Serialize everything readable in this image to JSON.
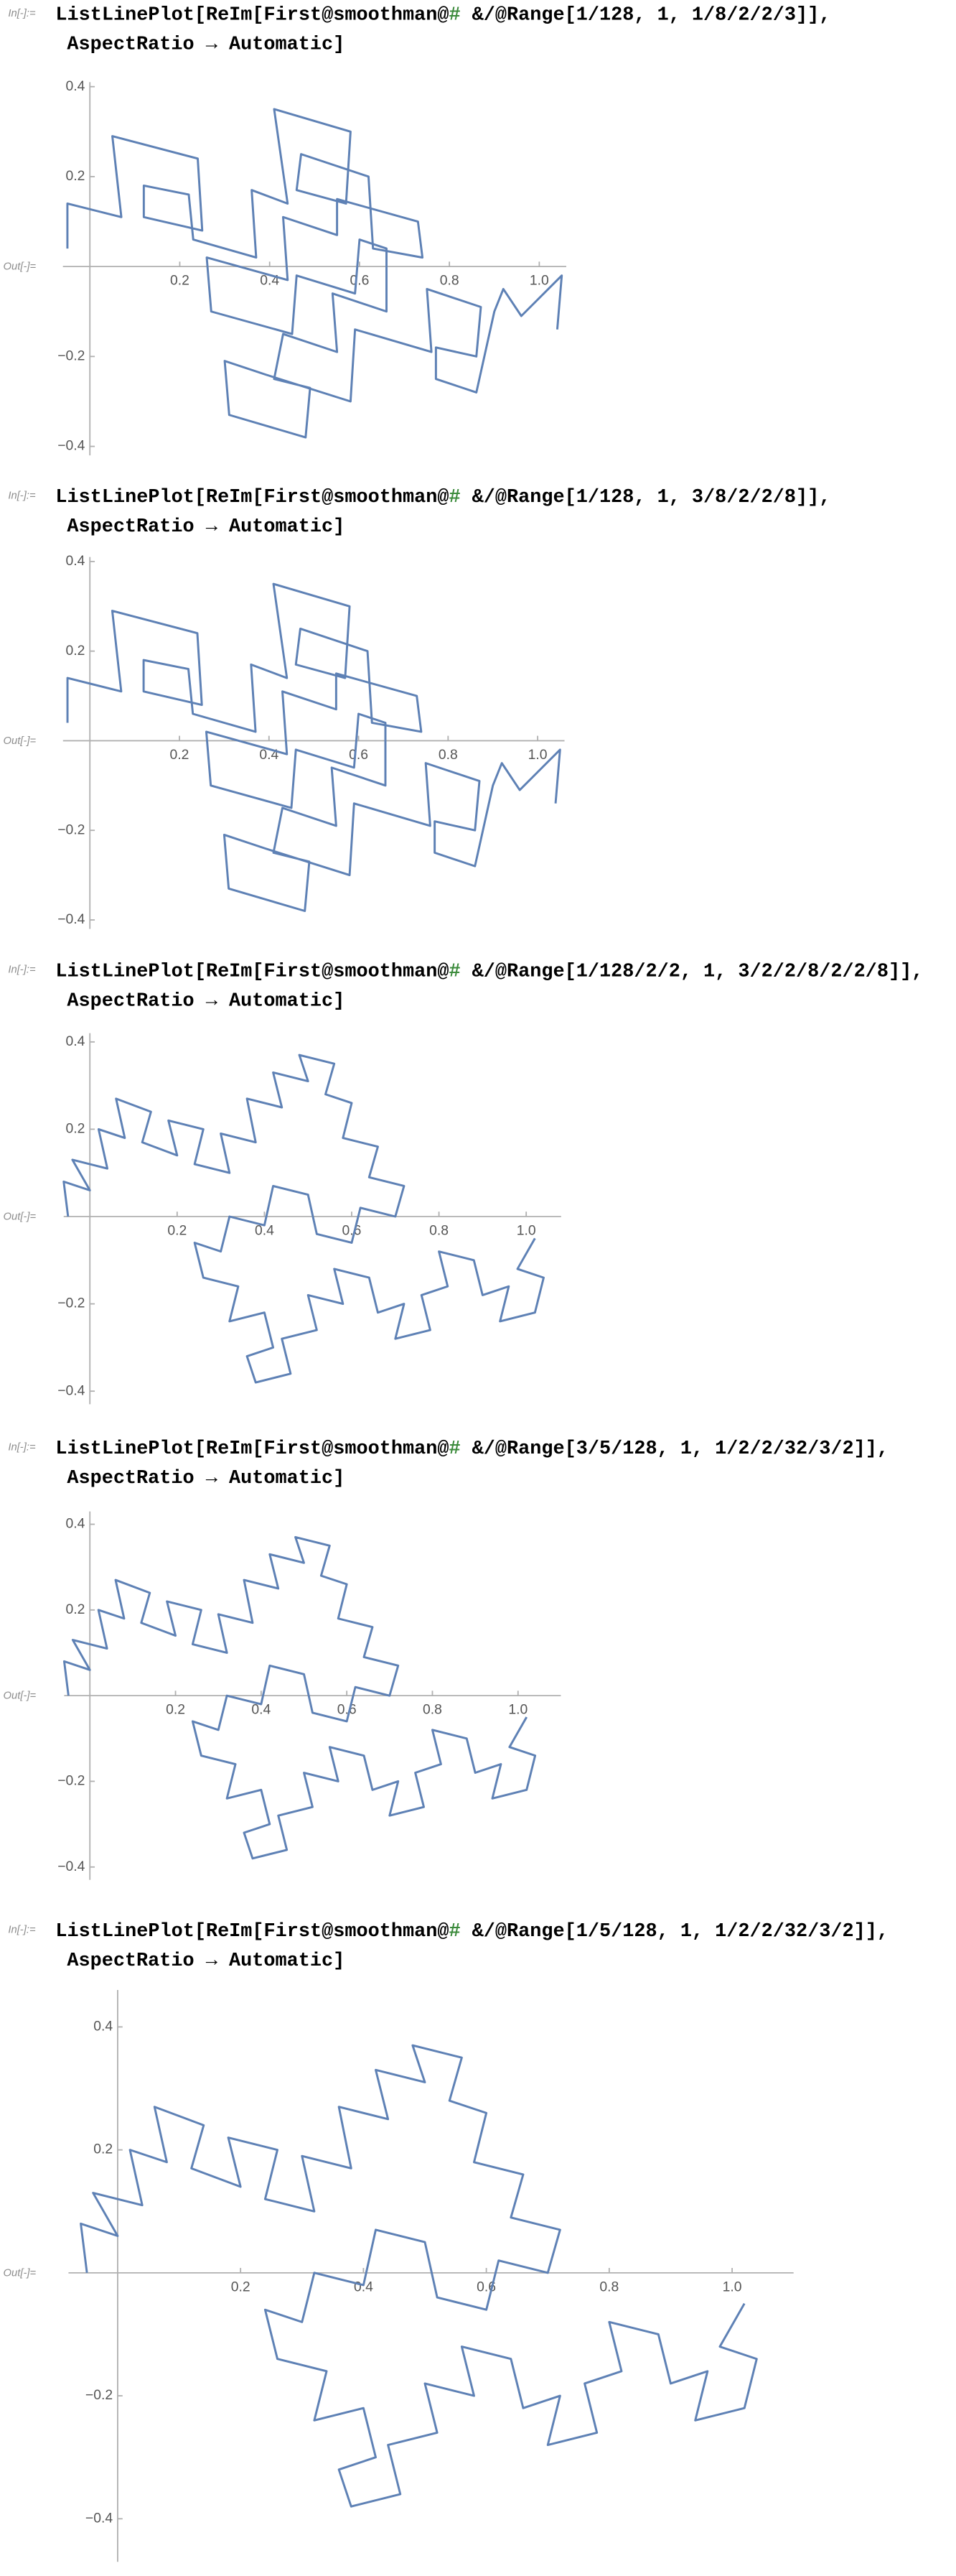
{
  "cells": [
    {
      "in_label": "In[-]:=",
      "code": [
        [
          "ListLinePlot[ReIm[First@smoothman@",
          "#",
          " &/@Range[1/128, 1, 1/8/2/2/3]],"
        ],
        "AspectRatio → Automatic]"
      ],
      "out_label": "Out[-]=",
      "chart_data": {
        "type": "line",
        "color": "#5e81b5",
        "x": [
          -0.05,
          -0.05,
          0.07,
          0.05,
          0.24,
          0.25,
          0.12,
          0.12,
          0.22,
          0.23,
          0.37,
          0.36,
          0.44,
          0.41,
          0.58,
          0.57,
          0.46,
          0.47,
          0.62,
          0.63,
          0.74,
          0.73,
          0.55,
          0.55,
          0.43,
          0.44,
          0.26,
          0.27,
          0.45,
          0.46,
          0.59,
          0.6,
          0.66,
          0.66,
          0.54,
          0.55,
          0.43,
          0.41,
          0.49,
          0.48,
          0.31,
          0.3,
          0.39,
          0.58,
          0.59,
          0.76,
          0.75,
          0.87,
          0.86,
          0.77,
          0.77,
          0.86,
          0.9,
          0.92,
          0.96,
          1.05,
          1.04
        ],
        "values": [
          0.04,
          0.14,
          0.11,
          0.29,
          0.24,
          0.08,
          0.11,
          0.18,
          0.16,
          0.06,
          0.02,
          0.17,
          0.14,
          0.35,
          0.3,
          0.14,
          0.17,
          0.25,
          0.2,
          0.04,
          0.02,
          0.1,
          0.15,
          0.07,
          0.11,
          -0.03,
          0.02,
          -0.1,
          -0.15,
          -0.02,
          -0.06,
          0.06,
          0.04,
          -0.1,
          -0.06,
          -0.19,
          -0.15,
          -0.25,
          -0.27,
          -0.38,
          -0.33,
          -0.21,
          -0.24,
          -0.3,
          -0.14,
          -0.19,
          -0.05,
          -0.09,
          -0.2,
          -0.18,
          -0.25,
          -0.28,
          -0.1,
          -0.05,
          -0.11,
          -0.02,
          -0.14
        ],
        "xlim": [
          -0.06,
          1.06
        ],
        "ylim": [
          -0.42,
          0.41
        ],
        "xticks": [
          0.2,
          0.4,
          0.6,
          0.8,
          {
            "value": 1,
            "label": "1.0"
          }
        ],
        "yticks": [
          {
            "value": -0.4,
            "label": "−0.4"
          },
          {
            "value": -0.2,
            "label": "−0.2"
          },
          0.2,
          0.4
        ]
      }
    },
    {
      "in_label": "In[-]:=",
      "code": [
        [
          "ListLinePlot[ReIm[First@smoothman@",
          "#",
          " &/@Range[1/128, 1, 3/8/2/2/8]],"
        ],
        "AspectRatio → Automatic]"
      ],
      "out_label": "Out[-]=",
      "chart_data": {
        "type": "line",
        "color": "#5e81b5",
        "x": [
          -0.05,
          -0.05,
          0.07,
          0.05,
          0.24,
          0.25,
          0.12,
          0.12,
          0.22,
          0.23,
          0.37,
          0.36,
          0.44,
          0.41,
          0.58,
          0.57,
          0.46,
          0.47,
          0.62,
          0.63,
          0.74,
          0.73,
          0.55,
          0.55,
          0.43,
          0.44,
          0.26,
          0.27,
          0.45,
          0.46,
          0.59,
          0.6,
          0.66,
          0.66,
          0.54,
          0.55,
          0.43,
          0.41,
          0.49,
          0.48,
          0.31,
          0.3,
          0.39,
          0.58,
          0.59,
          0.76,
          0.75,
          0.87,
          0.86,
          0.77,
          0.77,
          0.86,
          0.9,
          0.92,
          0.96,
          1.05,
          1.04
        ],
        "values": [
          0.04,
          0.14,
          0.11,
          0.29,
          0.24,
          0.08,
          0.11,
          0.18,
          0.16,
          0.06,
          0.02,
          0.17,
          0.14,
          0.35,
          0.3,
          0.14,
          0.17,
          0.25,
          0.2,
          0.04,
          0.02,
          0.1,
          0.15,
          0.07,
          0.11,
          -0.03,
          0.02,
          -0.1,
          -0.15,
          -0.02,
          -0.06,
          0.06,
          0.04,
          -0.1,
          -0.06,
          -0.19,
          -0.15,
          -0.25,
          -0.27,
          -0.38,
          -0.33,
          -0.21,
          -0.24,
          -0.3,
          -0.14,
          -0.19,
          -0.05,
          -0.09,
          -0.2,
          -0.18,
          -0.25,
          -0.28,
          -0.1,
          -0.05,
          -0.11,
          -0.02,
          -0.14
        ],
        "xlim": [
          -0.06,
          1.06
        ],
        "ylim": [
          -0.42,
          0.41
        ],
        "xticks": [
          0.2,
          0.4,
          0.6,
          0.8,
          {
            "value": 1,
            "label": "1.0"
          }
        ],
        "yticks": [
          {
            "value": -0.4,
            "label": "−0.4"
          },
          {
            "value": -0.2,
            "label": "−0.2"
          },
          0.2,
          0.4
        ]
      }
    },
    {
      "in_label": "In[-]:=",
      "code": [
        [
          "ListLinePlot[ReIm[First@smoothman@",
          "#",
          " &/@Range[1/128/2/2, 1, 3/2/2/8/2/2/8]],"
        ],
        "AspectRatio → Automatic]"
      ],
      "out_label": "Out[-]=",
      "chart_data": {
        "type": "line",
        "color": "#5e81b5",
        "x": [
          -0.05,
          -0.06,
          0.0,
          -0.04,
          0.04,
          0.02,
          0.08,
          0.06,
          0.14,
          0.12,
          0.2,
          0.18,
          0.26,
          0.24,
          0.32,
          0.3,
          0.38,
          0.36,
          0.44,
          0.42,
          0.5,
          0.48,
          0.56,
          0.54,
          0.6,
          0.58,
          0.66,
          0.64,
          0.72,
          0.7,
          0.62,
          0.6,
          0.52,
          0.5,
          0.42,
          0.4,
          0.32,
          0.3,
          0.24,
          0.26,
          0.34,
          0.32,
          0.4,
          0.42,
          0.36,
          0.38,
          0.46,
          0.44,
          0.52,
          0.5,
          0.58,
          0.56,
          0.64,
          0.66,
          0.72,
          0.7,
          0.78,
          0.76,
          0.82,
          0.8,
          0.88,
          0.9,
          0.96,
          0.94,
          1.02,
          1.04,
          0.98,
          1.02
        ],
        "values": [
          0.0,
          0.08,
          0.06,
          0.13,
          0.11,
          0.2,
          0.18,
          0.27,
          0.24,
          0.17,
          0.14,
          0.22,
          0.2,
          0.12,
          0.1,
          0.19,
          0.17,
          0.27,
          0.25,
          0.33,
          0.31,
          0.37,
          0.35,
          0.28,
          0.26,
          0.18,
          0.16,
          0.09,
          0.07,
          0.0,
          0.02,
          -0.06,
          -0.04,
          0.05,
          0.07,
          -0.02,
          0.0,
          -0.08,
          -0.06,
          -0.14,
          -0.16,
          -0.24,
          -0.22,
          -0.3,
          -0.32,
          -0.38,
          -0.36,
          -0.28,
          -0.26,
          -0.18,
          -0.2,
          -0.12,
          -0.14,
          -0.22,
          -0.2,
          -0.28,
          -0.26,
          -0.18,
          -0.16,
          -0.08,
          -0.1,
          -0.18,
          -0.16,
          -0.24,
          -0.22,
          -0.14,
          -0.12,
          -0.05
        ],
        "xlim": [
          -0.06,
          1.08
        ],
        "ylim": [
          -0.43,
          0.42
        ],
        "xticks": [
          0.2,
          0.4,
          0.6,
          0.8,
          {
            "value": 1,
            "label": "1.0"
          }
        ],
        "yticks": [
          {
            "value": -0.4,
            "label": "−0.4"
          },
          {
            "value": -0.2,
            "label": "−0.2"
          },
          0.2,
          0.4
        ]
      }
    },
    {
      "in_label": "In[-]:=",
      "code": [
        [
          "ListLinePlot[ReIm[First@smoothman@",
          "#",
          " &/@Range[3/5/128, 1, 1/2/2/32/3/2]],"
        ],
        "AspectRatio → Automatic]"
      ],
      "out_label": "Out[-]=",
      "chart_data": {
        "type": "line",
        "color": "#5e81b5",
        "x": [
          -0.05,
          -0.06,
          0.0,
          -0.04,
          0.04,
          0.02,
          0.08,
          0.06,
          0.14,
          0.12,
          0.2,
          0.18,
          0.26,
          0.24,
          0.32,
          0.3,
          0.38,
          0.36,
          0.44,
          0.42,
          0.5,
          0.48,
          0.56,
          0.54,
          0.6,
          0.58,
          0.66,
          0.64,
          0.72,
          0.7,
          0.62,
          0.6,
          0.52,
          0.5,
          0.42,
          0.4,
          0.32,
          0.3,
          0.24,
          0.26,
          0.34,
          0.32,
          0.4,
          0.42,
          0.36,
          0.38,
          0.46,
          0.44,
          0.52,
          0.5,
          0.58,
          0.56,
          0.64,
          0.66,
          0.72,
          0.7,
          0.78,
          0.76,
          0.82,
          0.8,
          0.88,
          0.9,
          0.96,
          0.94,
          1.02,
          1.04,
          0.98,
          1.02
        ],
        "values": [
          0.0,
          0.08,
          0.06,
          0.13,
          0.11,
          0.2,
          0.18,
          0.27,
          0.24,
          0.17,
          0.14,
          0.22,
          0.2,
          0.12,
          0.1,
          0.19,
          0.17,
          0.27,
          0.25,
          0.33,
          0.31,
          0.37,
          0.35,
          0.28,
          0.26,
          0.18,
          0.16,
          0.09,
          0.07,
          0.0,
          0.02,
          -0.06,
          -0.04,
          0.05,
          0.07,
          -0.02,
          0.0,
          -0.08,
          -0.06,
          -0.14,
          -0.16,
          -0.24,
          -0.22,
          -0.3,
          -0.32,
          -0.38,
          -0.36,
          -0.28,
          -0.26,
          -0.18,
          -0.2,
          -0.12,
          -0.14,
          -0.22,
          -0.2,
          -0.28,
          -0.26,
          -0.18,
          -0.16,
          -0.08,
          -0.1,
          -0.18,
          -0.16,
          -0.24,
          -0.22,
          -0.14,
          -0.12,
          -0.05
        ],
        "xlim": [
          -0.06,
          1.1
        ],
        "ylim": [
          -0.43,
          0.43
        ],
        "xticks": [
          0.2,
          0.4,
          0.6,
          0.8,
          {
            "value": 1,
            "label": "1.0"
          }
        ],
        "yticks": [
          {
            "value": -0.4,
            "label": "−0.4"
          },
          {
            "value": -0.2,
            "label": "−0.2"
          },
          0.2,
          0.4
        ]
      }
    },
    {
      "in_label": "In[-]:=",
      "code": [
        [
          "ListLinePlot[ReIm[First@smoothman@",
          "#",
          " &/@Range[1/5/128, 1, 1/2/2/32/3/2]],"
        ],
        "AspectRatio → Automatic]"
      ],
      "out_label": "Out[-]=",
      "chart_data": {
        "type": "line",
        "color": "#5e81b5",
        "x": [
          -0.05,
          -0.06,
          0.0,
          -0.04,
          0.04,
          0.02,
          0.08,
          0.06,
          0.14,
          0.12,
          0.2,
          0.18,
          0.26,
          0.24,
          0.32,
          0.3,
          0.38,
          0.36,
          0.44,
          0.42,
          0.5,
          0.48,
          0.56,
          0.54,
          0.6,
          0.58,
          0.66,
          0.64,
          0.72,
          0.7,
          0.62,
          0.6,
          0.52,
          0.5,
          0.42,
          0.4,
          0.32,
          0.3,
          0.24,
          0.26,
          0.34,
          0.32,
          0.4,
          0.42,
          0.36,
          0.38,
          0.46,
          0.44,
          0.52,
          0.5,
          0.58,
          0.56,
          0.64,
          0.66,
          0.72,
          0.7,
          0.78,
          0.76,
          0.82,
          0.8,
          0.88,
          0.9,
          0.96,
          0.94,
          1.02,
          1.04,
          0.98,
          1.02
        ],
        "values": [
          0.0,
          0.08,
          0.06,
          0.13,
          0.11,
          0.2,
          0.18,
          0.27,
          0.24,
          0.17,
          0.14,
          0.22,
          0.2,
          0.12,
          0.1,
          0.19,
          0.17,
          0.27,
          0.25,
          0.33,
          0.31,
          0.37,
          0.35,
          0.28,
          0.26,
          0.18,
          0.16,
          0.09,
          0.07,
          0.0,
          0.02,
          -0.06,
          -0.04,
          0.05,
          0.07,
          -0.02,
          0.0,
          -0.08,
          -0.06,
          -0.14,
          -0.16,
          -0.24,
          -0.22,
          -0.3,
          -0.32,
          -0.38,
          -0.36,
          -0.28,
          -0.26,
          -0.18,
          -0.2,
          -0.12,
          -0.14,
          -0.22,
          -0.2,
          -0.28,
          -0.26,
          -0.18,
          -0.16,
          -0.08,
          -0.1,
          -0.18,
          -0.16,
          -0.24,
          -0.22,
          -0.14,
          -0.12,
          -0.05
        ],
        "xlim": [
          -0.08,
          1.1
        ],
        "ylim": [
          -0.47,
          0.46
        ],
        "xticks": [
          0.2,
          0.4,
          0.6,
          0.8,
          {
            "value": 1,
            "label": "1.0"
          }
        ],
        "yticks": [
          {
            "value": -0.4,
            "label": "−0.4"
          },
          {
            "value": -0.2,
            "label": "−0.2"
          },
          0.2,
          0.4
        ]
      }
    }
  ]
}
